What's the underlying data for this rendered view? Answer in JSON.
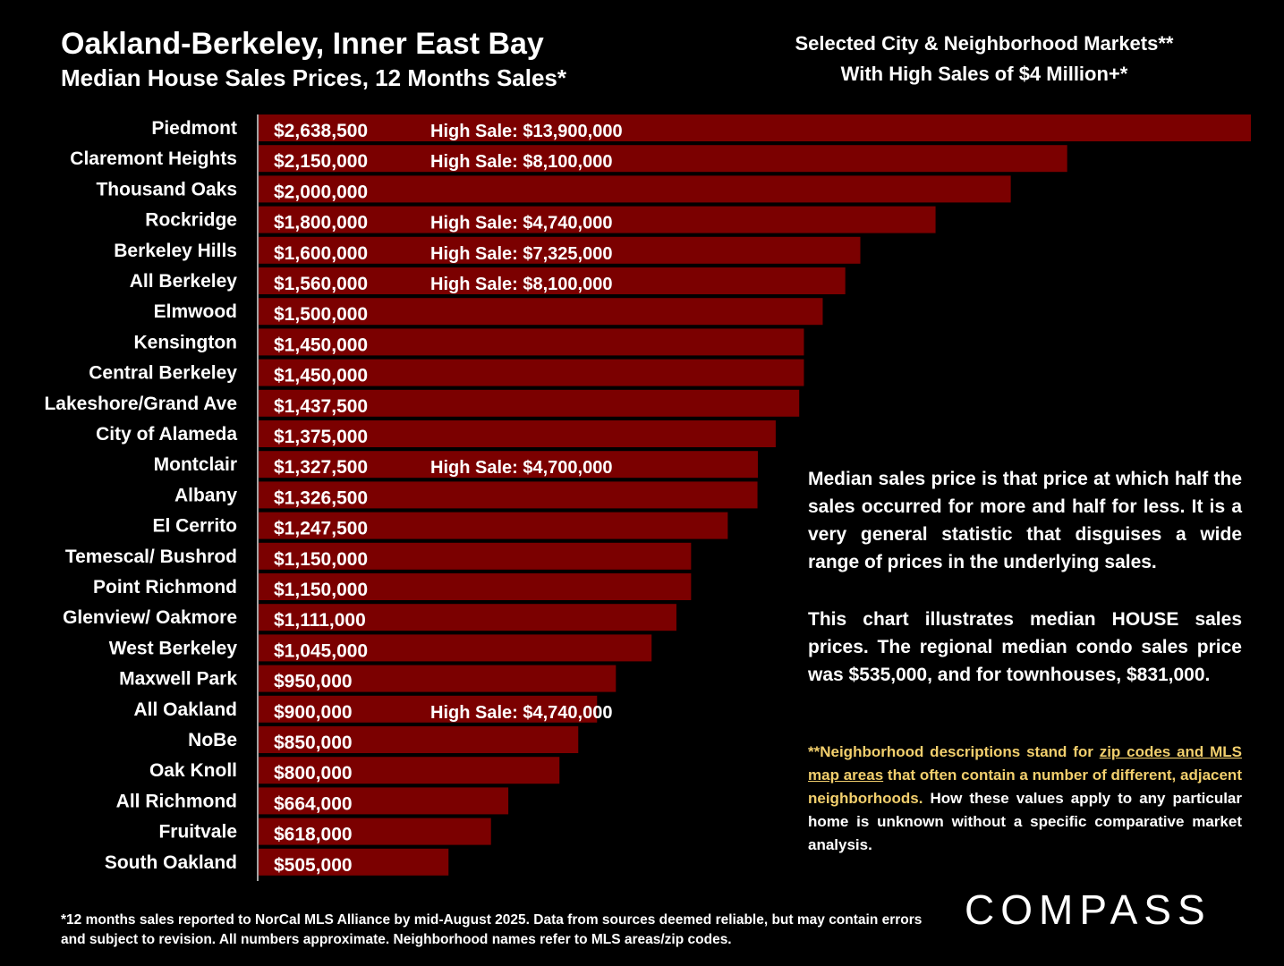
{
  "header": {
    "title": "Oakland-Berkeley, Inner East Bay",
    "subtitle": "Median House Sales Prices, 12 Months Sales*",
    "right_line1": "Selected City & Neighborhood Markets**",
    "right_line2": "With High Sales of $4 Million+*"
  },
  "chart_data": {
    "type": "bar",
    "orientation": "horizontal",
    "bar_color": "#7b0000",
    "categories": [
      "Piedmont",
      "Claremont Heights",
      "Thousand Oaks",
      "Rockridge",
      "Berkeley Hills",
      "All Berkeley",
      "Elmwood",
      "Kensington",
      "Central Berkeley",
      "Lakeshore/Grand Ave",
      "City of Alameda",
      "Montclair",
      "Albany",
      "El Cerrito",
      "Temescal/ Bushrod",
      "Point Richmond",
      "Glenview/ Oakmore",
      "West Berkeley",
      "Maxwell Park",
      "All Oakland",
      "NoBe",
      "Oak Knoll",
      "All Richmond",
      "Fruitvale",
      "South Oakland"
    ],
    "values": [
      2638500,
      2150000,
      2000000,
      1800000,
      1600000,
      1560000,
      1500000,
      1450000,
      1450000,
      1437500,
      1375000,
      1327500,
      1326500,
      1247500,
      1150000,
      1150000,
      1111000,
      1045000,
      950000,
      900000,
      850000,
      800000,
      664000,
      618000,
      505000
    ],
    "value_labels": [
      "$2,638,500",
      "$2,150,000",
      "$2,000,000",
      "$1,800,000",
      "$1,600,000",
      "$1,560,000",
      "$1,500,000",
      "$1,450,000",
      "$1,450,000",
      "$1,437,500",
      "$1,375,000",
      "$1,327,500",
      "$1,326,500",
      "$1,247,500",
      "$1,150,000",
      "$1,150,000",
      "$1,111,000",
      "$1,045,000",
      "$950,000",
      "$900,000",
      "$850,000",
      "$800,000",
      "$664,000",
      "$618,000",
      "$505,000"
    ],
    "high_sale_prefix": "High Sale:",
    "high_sales": [
      "$13,900,000",
      "$8,100,000",
      "",
      "$4,740,000",
      "$7,325,000",
      "$8,100,000",
      "",
      "",
      "",
      "",
      "",
      "$4,700,000",
      "",
      "",
      "",
      "",
      "",
      "",
      "",
      "$4,740,000",
      "",
      "",
      "",
      "",
      ""
    ],
    "xlim": [
      0,
      2638500
    ]
  },
  "notes": {
    "p1": "Median sales price is that price at which half the sales occurred for more and half for less. It is a very general statistic that disguises a wide range of prices in the underlying sales.",
    "p2": "This chart illustrates median HOUSE sales prices. The regional median condo sales price was $535,000, and for townhouses, $831,000.",
    "p3_a": "**Neighborhood descriptions stand for ",
    "p3_link": "zip codes and MLS map areas",
    "p3_b": " that often contain a number of different, adjacent neighborhoods.",
    "p3_c": " How these values apply to any particular home is unknown without a specific comparative market analysis."
  },
  "footer": {
    "text": "*12 months sales reported to NorCal MLS Alliance by mid-August 2025. Data from sources deemed reliable, but may contain errors and subject to revision. All numbers approximate. Neighborhood names refer to MLS areas/zip codes."
  },
  "logo": {
    "text": "COMPASS"
  }
}
